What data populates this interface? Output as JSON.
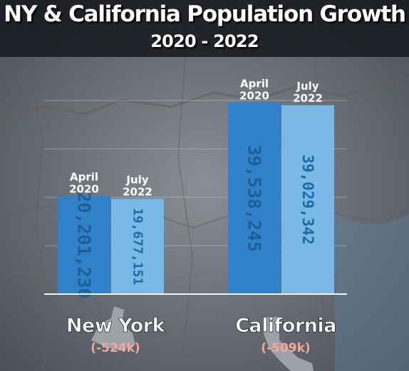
{
  "chart_data": {
    "type": "bar",
    "title": "NY & California Population Growth",
    "subtitle": "2020 - 2022",
    "categories": [
      "New York",
      "California"
    ],
    "series": [
      {
        "name": "April 2020",
        "label_lines": [
          "April",
          "2020"
        ],
        "values": [
          20201230,
          39538245
        ],
        "value_labels": [
          "20,201,230",
          "39,538,245"
        ],
        "color": "#2f82c9"
      },
      {
        "name": "July 2022",
        "label_lines": [
          "July",
          "2022"
        ],
        "values": [
          19677151,
          39029342
        ],
        "value_labels": [
          "19,677,151",
          "39,029,342"
        ],
        "color": "#7ab9e6"
      }
    ],
    "changes": [
      "(-524k)",
      "(-509k)"
    ],
    "ylim": [
      0,
      49000000
    ],
    "grid": true,
    "legend": "none"
  },
  "colors": {
    "header_bg": "#16181e",
    "change_text": "#f4a89a",
    "bar_dark": "#2f82c9",
    "bar_light": "#7ab9e6",
    "value_text_dark": "#1e5f96",
    "value_text_light": "#1f6aa6"
  }
}
